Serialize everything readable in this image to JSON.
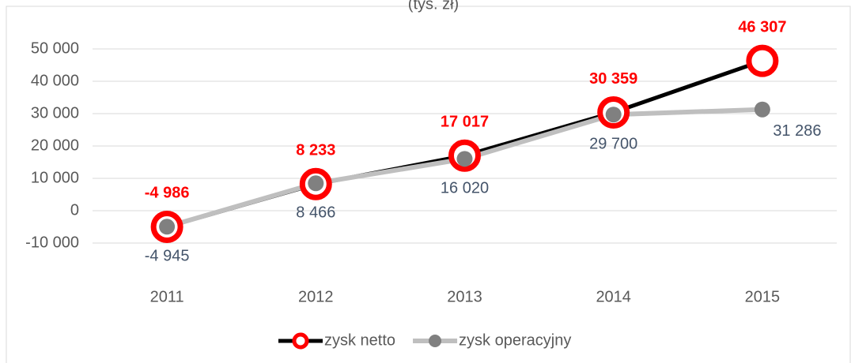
{
  "chart_data": {
    "type": "line",
    "title": "(tys. zł)",
    "categories": [
      "2011",
      "2012",
      "2013",
      "2014",
      "2015"
    ],
    "series": [
      {
        "name": "zysk netto",
        "color": "#000000",
        "marker_color": "#ff0000",
        "label_color": "#ff0000",
        "values": [
          -4986,
          8233,
          17017,
          30359,
          46307
        ],
        "value_labels": [
          "-4 986",
          "8 233",
          "17 017",
          "30 359",
          "46 307"
        ]
      },
      {
        "name": "zysk operacyjny",
        "color": "#bfbfbf",
        "marker_color": "#808080",
        "label_color": "#44546a",
        "values": [
          -4945,
          8466,
          16020,
          29700,
          31286
        ],
        "value_labels": [
          "-4 945",
          "8 466",
          "16 020",
          "29 700",
          "31 286"
        ]
      }
    ],
    "ylim": [
      -10000,
      50000
    ],
    "yticks": [
      {
        "value": -10000,
        "label": "-10 000"
      },
      0,
      {
        "value": 10000,
        "label": "10 000"
      },
      {
        "value": 20000,
        "label": "20 000"
      },
      {
        "value": 30000,
        "label": "30 000"
      },
      {
        "value": 40000,
        "label": "40 000"
      },
      {
        "value": 50000,
        "label": "50 000"
      }
    ],
    "grid": true,
    "legend": "bottom"
  }
}
